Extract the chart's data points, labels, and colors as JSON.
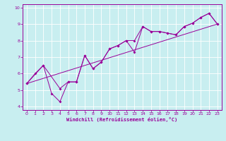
{
  "title": "",
  "xlabel": "Windchill (Refroidissement éolien,°C)",
  "bg_color": "#c8eef0",
  "line_color": "#990099",
  "grid_color": "#ffffff",
  "xlim": [
    -0.5,
    23.5
  ],
  "ylim": [
    3.8,
    10.2
  ],
  "xticks": [
    0,
    1,
    2,
    3,
    4,
    5,
    6,
    7,
    8,
    9,
    10,
    11,
    12,
    13,
    14,
    15,
    16,
    17,
    18,
    19,
    20,
    21,
    22,
    23
  ],
  "yticks": [
    4,
    5,
    6,
    7,
    8,
    9,
    10
  ],
  "line1": {
    "x": [
      0,
      1,
      2,
      3,
      4,
      5,
      6,
      7,
      8,
      9,
      10,
      11,
      12,
      13,
      14,
      15,
      16,
      17,
      18,
      19,
      20,
      21,
      22,
      23
    ],
    "y": [
      5.4,
      6.0,
      6.5,
      4.8,
      4.3,
      5.5,
      5.5,
      7.1,
      6.3,
      6.7,
      7.5,
      7.7,
      8.0,
      7.3,
      8.85,
      8.55,
      8.55,
      8.45,
      8.35,
      8.85,
      9.05,
      9.4,
      9.65,
      9.0
    ]
  },
  "line2": {
    "x": [
      0,
      2,
      4,
      5,
      6,
      7,
      8,
      9,
      10,
      11,
      12,
      13,
      14,
      15,
      16,
      17,
      18,
      19,
      20,
      21,
      22,
      23
    ],
    "y": [
      5.4,
      6.5,
      5.1,
      5.5,
      5.5,
      7.1,
      6.3,
      6.7,
      7.5,
      7.7,
      8.0,
      8.0,
      8.85,
      8.55,
      8.55,
      8.45,
      8.35,
      8.85,
      9.05,
      9.4,
      9.65,
      9.0
    ]
  },
  "line3": {
    "x": [
      0,
      23
    ],
    "y": [
      5.4,
      9.0
    ]
  }
}
